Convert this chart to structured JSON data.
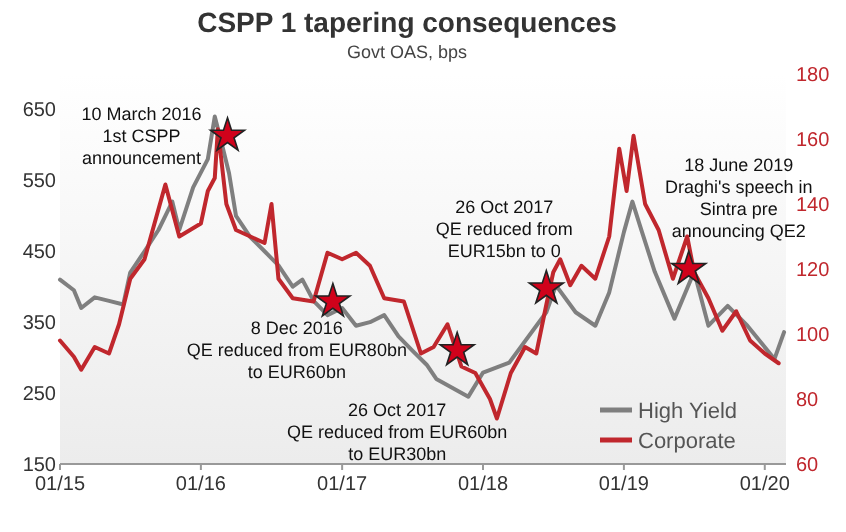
{
  "chart_data": {
    "type": "line",
    "title": "CSPP 1 tapering consequences",
    "subtitle": "Govt OAS, bps",
    "xlim": [
      "2015-01-01",
      "2020-02-25"
    ],
    "xticks": [
      {
        "value": "2015-01-01",
        "label": "01/15"
      },
      {
        "value": "2016-01-01",
        "label": "01/16"
      },
      {
        "value": "2017-01-01",
        "label": "01/17"
      },
      {
        "value": "2018-01-01",
        "label": "01/18"
      },
      {
        "value": "2019-01-01",
        "label": "01/19"
      },
      {
        "value": "2020-01-01",
        "label": "01/20"
      }
    ],
    "ylim": [
      150,
      700
    ],
    "yticks": [
      150,
      250,
      350,
      450,
      550,
      650
    ],
    "y2lim": [
      60,
      180
    ],
    "y2ticks": [
      60,
      80,
      100,
      120,
      140,
      160,
      180
    ],
    "grid": false,
    "legend": "bottom right",
    "marker": "none",
    "line_style": "solid",
    "series": [
      {
        "name": "High Yield",
        "color": "#7f7f7f",
        "axis": "y",
        "x": [
          "2015-01-01",
          "2015-02-06",
          "2015-02-25",
          "2015-04-01",
          "2015-05-08",
          "2015-06-14",
          "2015-07-02",
          "2015-08-08",
          "2015-09-13",
          "2015-10-01",
          "2015-10-19",
          "2015-11-06",
          "2015-12-12",
          "2016-01-19",
          "2016-02-06",
          "2016-02-25",
          "2016-03-14",
          "2016-04-01",
          "2016-05-08",
          "2016-06-14",
          "2016-07-20",
          "2016-08-26",
          "2016-09-20",
          "2016-10-19",
          "2016-11-24",
          "2017-01-01",
          "2017-02-06",
          "2017-03-14",
          "2017-04-20",
          "2017-05-27",
          "2017-07-02",
          "2017-08-08",
          "2017-09-02",
          "2017-11-24",
          "2018-01-01",
          "2018-03-10",
          "2018-06-14",
          "2018-07-09",
          "2018-08-29",
          "2018-10-19",
          "2018-11-24",
          "2019-01-01",
          "2019-01-23",
          "2019-02-17",
          "2019-03-22",
          "2019-05-12",
          "2019-07-02",
          "2019-08-08",
          "2019-09-27",
          "2019-11-17",
          "2020-01-26",
          "2020-02-20"
        ],
        "values": [
          410,
          395,
          370,
          385,
          380,
          375,
          420,
          450,
          480,
          500,
          520,
          480,
          540,
          580,
          640,
          600,
          560,
          500,
          470,
          450,
          430,
          400,
          410,
          380,
          360,
          370,
          345,
          350,
          360,
          330,
          310,
          290,
          270,
          245,
          279,
          293,
          364,
          402,
          364,
          345,
          392,
          477,
          520,
          477,
          421,
          355,
          421,
          345,
          373,
          345,
          298,
          336
        ]
      },
      {
        "name": "Corporate",
        "color": "#c0272d",
        "axis": "y2",
        "x": [
          "2015-01-01",
          "2015-02-06",
          "2015-02-25",
          "2015-04-01",
          "2015-05-08",
          "2015-06-03",
          "2015-07-02",
          "2015-08-08",
          "2015-10-01",
          "2015-11-06",
          "2016-01-01",
          "2016-01-19",
          "2016-02-06",
          "2016-02-14",
          "2016-03-07",
          "2016-04-01",
          "2016-05-08",
          "2016-06-14",
          "2016-07-02",
          "2016-07-20",
          "2016-08-26",
          "2016-10-19",
          "2016-11-24",
          "2017-01-01",
          "2017-02-06",
          "2017-03-14",
          "2017-04-20",
          "2017-06-10",
          "2017-07-24",
          "2017-08-26",
          "2017-10-01",
          "2017-11-06",
          "2017-12-12",
          "2018-01-19",
          "2018-02-06",
          "2018-03-14",
          "2018-04-20",
          "2018-05-19",
          "2018-06-14",
          "2018-07-02",
          "2018-07-20",
          "2018-08-15",
          "2018-09-13",
          "2018-10-19",
          "2018-11-24",
          "2018-12-20",
          "2019-01-08",
          "2019-01-26",
          "2019-02-25",
          "2019-04-01",
          "2019-05-08",
          "2019-06-14",
          "2019-07-02",
          "2019-08-08",
          "2019-09-13",
          "2019-10-19",
          "2019-11-24",
          "2020-01-01",
          "2020-02-06"
        ],
        "values": [
          98,
          93,
          89,
          96,
          94,
          103,
          117,
          123,
          146,
          130,
          134,
          144,
          148,
          163,
          140,
          132,
          130,
          128,
          140,
          117,
          111,
          110,
          125,
          123,
          125,
          121,
          111,
          110,
          94,
          96,
          103,
          90,
          88,
          80,
          74,
          88,
          96,
          94,
          109,
          119,
          123,
          115,
          121,
          117,
          130,
          157,
          144,
          161,
          140,
          132,
          117,
          130,
          119,
          111,
          101,
          107,
          98,
          94,
          91
        ]
      },
      {
        "type": "scatter",
        "marker": "star",
        "color": "#d0021b",
        "axis": "y2",
        "x": [
          "2016-03-10",
          "2016-12-08",
          "2017-10-26",
          "2018-06-14",
          "2019-06-18"
        ],
        "values": [
          161,
          110,
          95,
          114,
          120
        ]
      }
    ],
    "annotations": [
      "10 March 2016\n1st CSPP\nannouncement",
      "8 Dec 2016\nQE reduced from EUR80bn\nto EUR60bn",
      "26 Oct 2017\nQE reduced from EUR60bn\nto EUR30bn",
      "26 Oct 2017\nQE reduced from\nEUR15bn to 0",
      "18 June 2019\nDraghi's speech in\nSintra pre\nannouncing QE2"
    ]
  }
}
